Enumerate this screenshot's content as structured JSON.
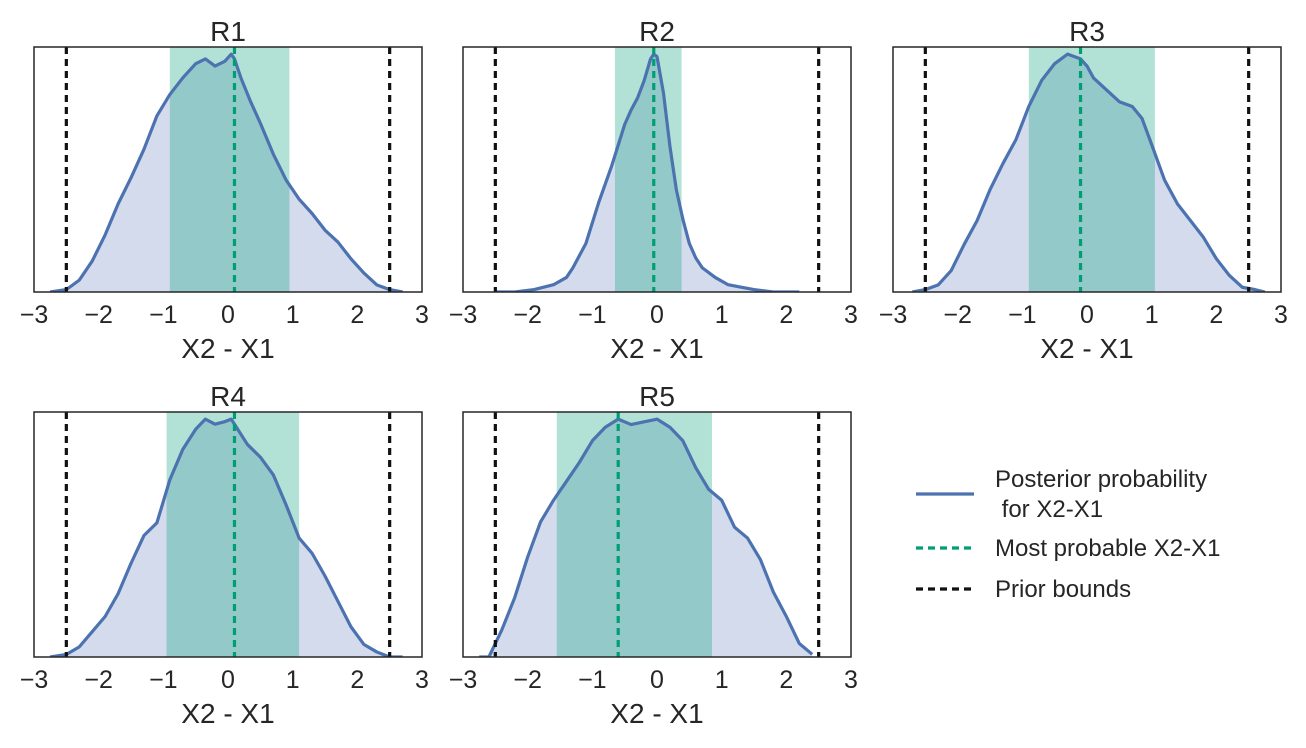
{
  "chart_data": {
    "type": "area",
    "layout": "2x3 grid of density panels (6th cell holds legend)",
    "shared_xlabel": "X2 - X1",
    "xlim": [
      -3,
      3
    ],
    "xticks": [
      -3,
      -2,
      -1,
      0,
      1,
      2,
      3
    ],
    "xtick_labels": [
      "−3",
      "−2",
      "−1",
      "0",
      "1",
      "2",
      "3"
    ],
    "prior_bounds": [
      -2.5,
      2.5
    ],
    "colors": {
      "posterior_line": "#4c72b0",
      "posterior_fill": "#d3dbec",
      "interval_band": "#009e73",
      "most_probable_line": "#009e73",
      "prior_line": "#111111",
      "axes_edge": "#262626"
    },
    "legend": {
      "placement": "right of R5",
      "entries": [
        {
          "key": "posterior",
          "style": "solid",
          "color": "#4c72b0",
          "lines": [
            "Posterior probability",
            " for X2-X1"
          ]
        },
        {
          "key": "most_probable",
          "style": "dashed",
          "color": "#009e73",
          "lines": [
            "Most probable X2-X1"
          ]
        },
        {
          "key": "prior",
          "style": "dashed",
          "color": "#111111",
          "lines": [
            "Prior bounds"
          ]
        }
      ]
    },
    "panels": [
      {
        "title": "R1",
        "xlabel": "X2 - X1",
        "interval": [
          -0.9,
          0.95
        ],
        "most_probable": 0.1,
        "density": {
          "x": [
            -2.75,
            -2.5,
            -2.3,
            -2.1,
            -1.9,
            -1.7,
            -1.5,
            -1.3,
            -1.1,
            -0.9,
            -0.7,
            -0.5,
            -0.35,
            -0.2,
            -0.05,
            0.05,
            0.1,
            0.2,
            0.35,
            0.5,
            0.7,
            0.9,
            1.1,
            1.3,
            1.5,
            1.7,
            1.9,
            2.1,
            2.3,
            2.5,
            2.7
          ],
          "y": [
            0.0,
            0.01,
            0.05,
            0.13,
            0.24,
            0.37,
            0.48,
            0.6,
            0.74,
            0.83,
            0.9,
            0.96,
            0.98,
            0.95,
            0.97,
            1.0,
            0.98,
            0.9,
            0.8,
            0.71,
            0.58,
            0.47,
            0.39,
            0.33,
            0.26,
            0.21,
            0.14,
            0.08,
            0.03,
            0.01,
            0.0
          ]
        }
      },
      {
        "title": "R2",
        "xlabel": "X2 - X1",
        "interval": [
          -0.65,
          0.38
        ],
        "most_probable": -0.05,
        "density": {
          "x": [
            -2.5,
            -2.2,
            -1.9,
            -1.6,
            -1.4,
            -1.3,
            -1.1,
            -0.9,
            -0.7,
            -0.5,
            -0.4,
            -0.3,
            -0.2,
            -0.1,
            -0.05,
            0.0,
            0.1,
            0.2,
            0.3,
            0.4,
            0.5,
            0.6,
            0.7,
            0.9,
            1.1,
            1.3,
            1.5,
            1.8,
            2.2
          ],
          "y": [
            0.0,
            0.0,
            0.01,
            0.03,
            0.06,
            0.1,
            0.2,
            0.37,
            0.52,
            0.69,
            0.75,
            0.8,
            0.87,
            0.96,
            0.98,
            0.97,
            0.82,
            0.6,
            0.42,
            0.3,
            0.2,
            0.14,
            0.1,
            0.06,
            0.03,
            0.02,
            0.01,
            0.0,
            0.0
          ]
        }
      },
      {
        "title": "R3",
        "xlabel": "X2 - X1",
        "interval": [
          -0.9,
          1.05
        ],
        "most_probable": -0.1,
        "density": {
          "x": [
            -2.7,
            -2.5,
            -2.3,
            -2.1,
            -1.9,
            -1.7,
            -1.5,
            -1.3,
            -1.1,
            -0.9,
            -0.7,
            -0.5,
            -0.3,
            -0.1,
            0.0,
            0.1,
            0.3,
            0.5,
            0.7,
            0.85,
            1.0,
            1.2,
            1.4,
            1.6,
            1.8,
            2.0,
            2.2,
            2.4,
            2.6,
            2.75
          ],
          "y": [
            0.0,
            0.01,
            0.03,
            0.09,
            0.2,
            0.3,
            0.43,
            0.54,
            0.64,
            0.78,
            0.89,
            0.96,
            1.0,
            0.98,
            0.95,
            0.9,
            0.85,
            0.8,
            0.78,
            0.73,
            0.62,
            0.47,
            0.37,
            0.3,
            0.23,
            0.14,
            0.07,
            0.02,
            0.01,
            0.0
          ]
        }
      },
      {
        "title": "R4",
        "xlabel": "X2 - X1",
        "interval": [
          -0.95,
          1.1
        ],
        "most_probable": 0.1,
        "density": {
          "x": [
            -2.75,
            -2.5,
            -2.3,
            -2.1,
            -1.9,
            -1.7,
            -1.5,
            -1.3,
            -1.1,
            -0.9,
            -0.7,
            -0.5,
            -0.35,
            -0.2,
            -0.05,
            0.05,
            0.15,
            0.3,
            0.5,
            0.7,
            0.9,
            1.1,
            1.3,
            1.5,
            1.7,
            1.9,
            2.1,
            2.3,
            2.5,
            2.7
          ],
          "y": [
            0.0,
            0.01,
            0.04,
            0.1,
            0.16,
            0.25,
            0.37,
            0.48,
            0.53,
            0.7,
            0.82,
            0.9,
            0.94,
            0.92,
            0.93,
            0.94,
            0.9,
            0.84,
            0.79,
            0.72,
            0.6,
            0.47,
            0.41,
            0.32,
            0.22,
            0.12,
            0.05,
            0.02,
            0.0,
            0.0
          ]
        }
      },
      {
        "title": "R5",
        "xlabel": "X2 - X1",
        "interval": [
          -1.55,
          0.85
        ],
        "most_probable": -0.6,
        "density": {
          "x": [
            -2.75,
            -2.6,
            -2.4,
            -2.2,
            -2.0,
            -1.8,
            -1.6,
            -1.4,
            -1.2,
            -1.0,
            -0.8,
            -0.6,
            -0.4,
            -0.2,
            0.0,
            0.2,
            0.4,
            0.6,
            0.8,
            1.0,
            1.2,
            1.4,
            1.6,
            1.8,
            2.0,
            2.2,
            2.4
          ],
          "y": [
            0.0,
            0.0,
            0.1,
            0.22,
            0.37,
            0.5,
            0.58,
            0.65,
            0.72,
            0.8,
            0.85,
            0.88,
            0.86,
            0.87,
            0.88,
            0.85,
            0.8,
            0.7,
            0.62,
            0.58,
            0.48,
            0.44,
            0.36,
            0.24,
            0.15,
            0.05,
            0.01
          ]
        }
      }
    ]
  }
}
